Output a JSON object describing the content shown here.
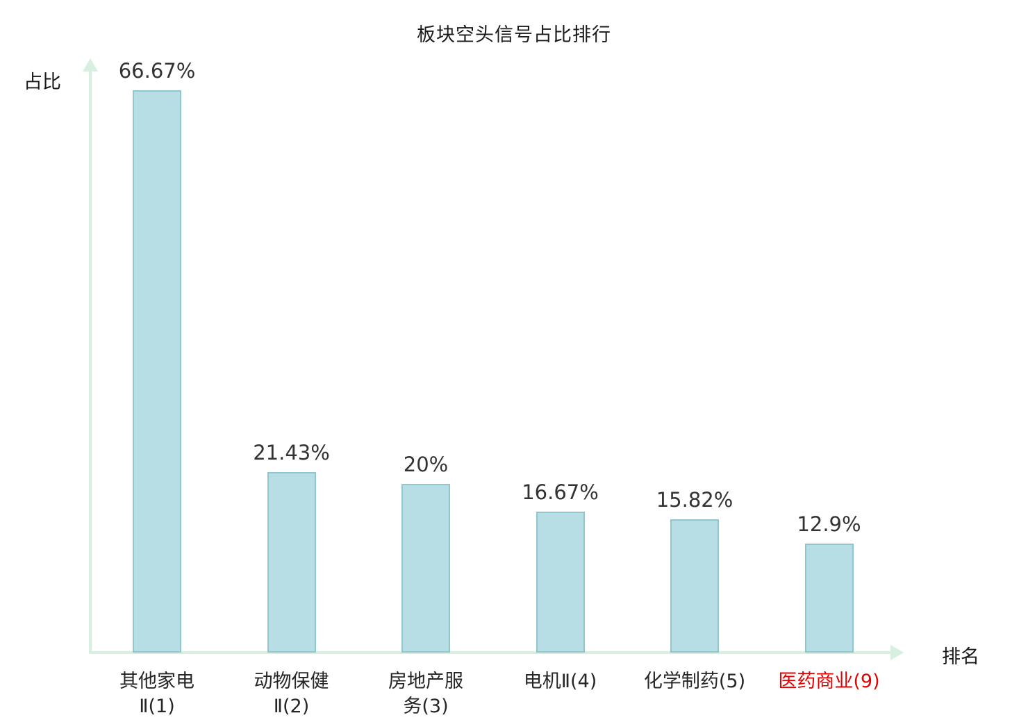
{
  "chart_data": {
    "type": "bar",
    "title": "板块空头信号占比排行",
    "ylabel": "占比",
    "xlabel": "排名",
    "categories": [
      "其他家电\nⅡ(1)",
      "动物保健\nⅡ(2)",
      "房地产服\n务(3)",
      "电机Ⅱ(4)",
      "化学制药(5)",
      "医药商业(9)"
    ],
    "values": [
      66.67,
      21.43,
      20,
      16.67,
      15.82,
      12.9
    ],
    "value_labels": [
      "66.67%",
      "21.43%",
      "20%",
      "16.67%",
      "15.82%",
      "12.9%"
    ],
    "category_colors": [
      "#262626",
      "#262626",
      "#262626",
      "#262626",
      "#262626",
      "#e60000"
    ],
    "highlighted_category": "医药商业(9)",
    "bar_fill": "#b7dee4",
    "bar_border": "#90c6ce",
    "axis_color": "#d6efe0",
    "ylim": [
      0,
      70
    ],
    "grid": false,
    "legend": "none"
  }
}
